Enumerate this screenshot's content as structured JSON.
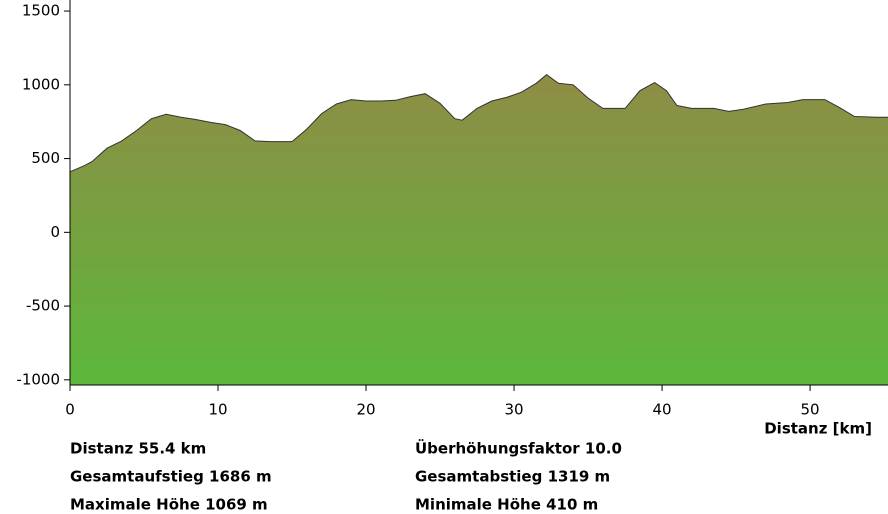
{
  "chart_data": {
    "type": "area",
    "x_label": "Distanz [km]",
    "x": [
      0,
      1,
      1.5,
      2.5,
      3.5,
      4.5,
      5.5,
      6.5,
      7.5,
      8.5,
      9.5,
      10.5,
      11.5,
      12.5,
      13.5,
      15,
      16,
      17,
      18,
      19,
      20,
      21,
      22,
      23,
      24,
      25,
      26,
      26.5,
      27.5,
      28.5,
      29.5,
      30.5,
      31.5,
      32.2,
      33,
      34,
      35,
      36,
      37.5,
      38.5,
      39.5,
      40.3,
      41,
      42,
      43.5,
      44.5,
      45.5,
      47,
      48.5,
      49.5,
      51,
      52,
      53,
      54.5,
      55.4
    ],
    "series": [
      {
        "color": "#5bb83b",
        "values": [
          410,
          454,
          480,
          570,
          620,
          690,
          770,
          800,
          780,
          765,
          745,
          730,
          690,
          620,
          615,
          615,
          700,
          805,
          870,
          900,
          890,
          890,
          895,
          920,
          940,
          875,
          770,
          760,
          840,
          890,
          915,
          950,
          1010,
          1069,
          1010,
          1000,
          910,
          840,
          840,
          960,
          1015,
          960,
          860,
          840,
          840,
          820,
          835,
          870,
          880,
          900,
          900,
          845,
          785,
          780,
          780
        ]
      }
    ],
    "xlim": [
      0,
      55.4
    ],
    "ylim": [
      -1035,
      1575
    ],
    "xticks": [
      0,
      10,
      20,
      30,
      40,
      50
    ],
    "yticks": [
      -1000,
      -500,
      0,
      500,
      1000,
      1500
    ],
    "stats": [
      "Distanz 55.4 km",
      "Gesamtaufstieg  1686 m",
      "Maximale Höhe  1069 m",
      "Überhöhungsfaktor 10.0",
      "Gesamtabstieg  1319 m",
      "Minimale Höhe  410 m"
    ]
  }
}
